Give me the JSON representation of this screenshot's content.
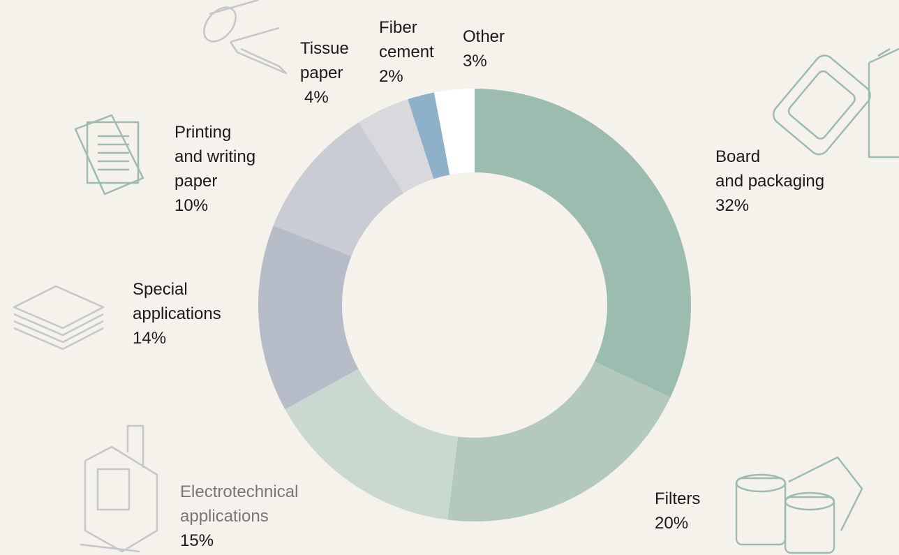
{
  "chart_data": {
    "type": "donut",
    "categories": [
      "Board\nand packaging",
      "Filters",
      "Electrotechnical\napplications",
      "Special\napplications",
      "Printing\nand writing\npaper",
      "Tissue\npaper",
      "Fiber\ncement",
      "Other"
    ],
    "values": [
      32,
      20,
      15,
      14,
      10,
      4,
      2,
      3
    ],
    "value_labels": [
      "32%",
      "20%",
      "15%",
      "14%",
      "10%",
      "4%",
      "2%",
      "3%"
    ],
    "colors": [
      "#9dbcb0",
      "#b3c9bd",
      "#cad9cf",
      "#b6bdc8",
      "#c9ccd4",
      "#d8d9dc",
      "#8fb0c9",
      "#ffffff"
    ]
  }
}
